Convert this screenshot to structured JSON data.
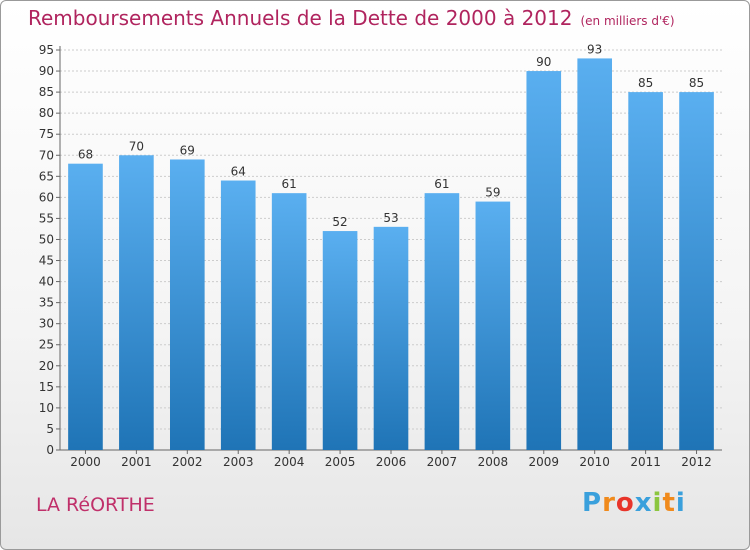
{
  "header": {
    "title": "Remboursements Annuels de la Dette de 2000 à 2012",
    "unit": "(en milliers d'€)"
  },
  "footer": {
    "place": "LA RéORTHE",
    "logo_letters": [
      "P",
      "r",
      "o",
      "x",
      "i",
      "t",
      "i"
    ],
    "logo_colors": [
      "#3aa0dc",
      "#f08a1c",
      "#e8342a",
      "#3aa0dc",
      "#8cc63f",
      "#f08a1c",
      "#3aa0dc"
    ]
  },
  "colors": {
    "bar_light": "#5aaff0",
    "bar_dark": "#1f74b6",
    "title": "#b0245e",
    "grid": "#cccccc"
  },
  "chart_data": {
    "type": "bar",
    "title": "Remboursements Annuels de la Dette de 2000 à 2012",
    "subtitle": "(en milliers d'€)",
    "xlabel": "",
    "ylabel": "",
    "categories": [
      "2000",
      "2001",
      "2002",
      "2003",
      "2004",
      "2005",
      "2006",
      "2007",
      "2008",
      "2009",
      "2010",
      "2011",
      "2012"
    ],
    "values": [
      68,
      70,
      69,
      64,
      61,
      52,
      53,
      61,
      59,
      90,
      93,
      85,
      85
    ],
    "ylim": [
      0,
      95
    ],
    "ytick_step": 5,
    "grid": true,
    "legend": "none"
  }
}
